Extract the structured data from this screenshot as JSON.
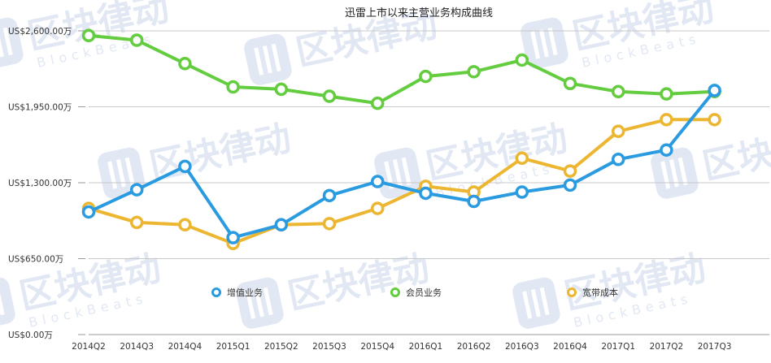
{
  "chart_data": {
    "type": "line",
    "title": "迅雷上市以来主营业务构成曲线",
    "categories": [
      "2014Q2",
      "2014Q3",
      "2014Q4",
      "2015Q1",
      "2015Q2",
      "2015Q3",
      "2015Q4",
      "2016Q1",
      "2016Q2",
      "2016Q3",
      "2016Q4",
      "2017Q1",
      "2017Q2",
      "2017Q3"
    ],
    "y_ticks": [
      "US$0.00万",
      "US$650.00万",
      "US$1,300.00万",
      "US$1,950.00万",
      "US$2,600.00万"
    ],
    "ylim": [
      0,
      2600
    ],
    "grid": true,
    "legend_position": "bottom",
    "series": [
      {
        "name": "增值业务",
        "color": "#2a9be0",
        "values": [
          1050,
          1240,
          1440,
          830,
          940,
          1190,
          1310,
          1210,
          1140,
          1220,
          1280,
          1500,
          1580,
          2090
        ]
      },
      {
        "name": "会员业务",
        "color": "#63cc3f",
        "values": [
          2560,
          2520,
          2320,
          2120,
          2100,
          2040,
          1980,
          2210,
          2250,
          2350,
          2150,
          2080,
          2060,
          2080
        ]
      },
      {
        "name": "宽带成本",
        "color": "#ecb631",
        "values": [
          1080,
          960,
          940,
          780,
          940,
          950,
          1080,
          1270,
          1220,
          1510,
          1400,
          1740,
          1840,
          1840
        ]
      }
    ]
  },
  "watermark": {
    "text": "区块律动",
    "subtext": "BlockBeats",
    "color": "#c9d6ea"
  }
}
